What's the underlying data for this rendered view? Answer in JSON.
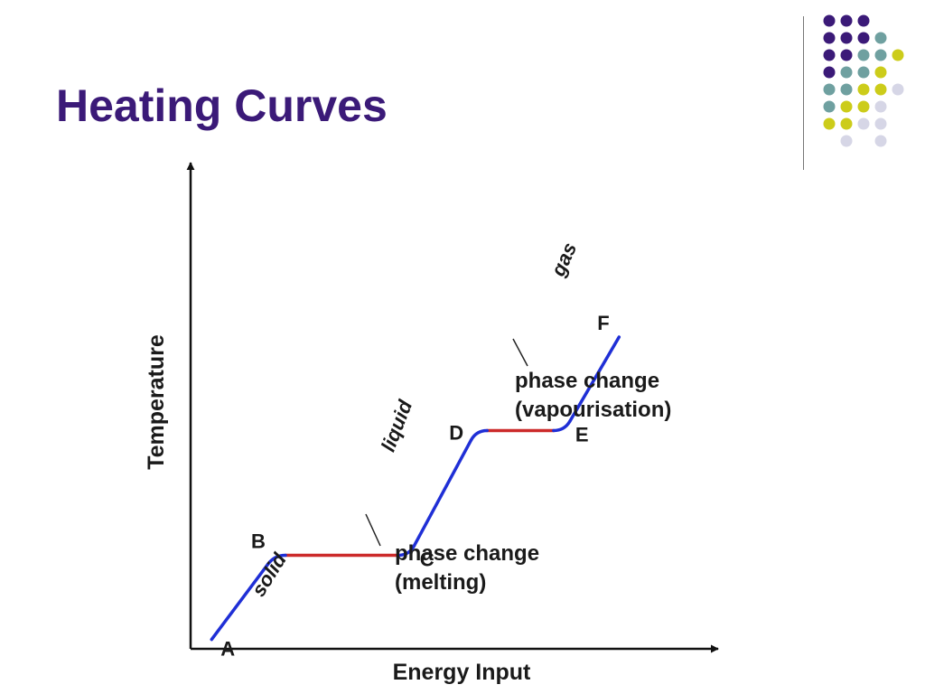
{
  "slide": {
    "title": "Heating Curves"
  },
  "decoration": {
    "dot_colors": {
      "purple": "#3b1a78",
      "teal": "#6fa0a0",
      "yellow": "#cccc1a",
      "lavender": "#d6d6e6"
    }
  },
  "chart_data": {
    "type": "line",
    "title": "",
    "xlabel": "Energy Input",
    "ylabel": "Temperature",
    "grid": false,
    "axis_ticks": false,
    "colors": {
      "heating": "#1f2fd6",
      "phase_change": "#cc2a2a",
      "axis": "#111111"
    },
    "points": [
      {
        "label": "A",
        "x": 0.5,
        "y": 0.3
      },
      {
        "label": "B",
        "x": 2.0,
        "y": 3.0
      },
      {
        "label": "C",
        "x": 5.2,
        "y": 3.0
      },
      {
        "label": "D",
        "x": 6.8,
        "y": 7.0
      },
      {
        "label": "E",
        "x": 8.9,
        "y": 7.0
      },
      {
        "label": "F",
        "x": 10.2,
        "y": 10.0
      }
    ],
    "segments": [
      {
        "from": "A",
        "to": "B",
        "state": "solid",
        "kind": "heating"
      },
      {
        "from": "B",
        "to": "C",
        "state": "",
        "kind": "phase_change"
      },
      {
        "from": "C",
        "to": "D",
        "state": "liquid",
        "kind": "heating"
      },
      {
        "from": "D",
        "to": "E",
        "state": "",
        "kind": "phase_change"
      },
      {
        "from": "E",
        "to": "F",
        "state": "gas",
        "kind": "heating"
      }
    ],
    "annotations": [
      {
        "line1": "phase change",
        "line2": "(melting)"
      },
      {
        "line1": "phase change",
        "line2": "(vapourisation)"
      }
    ]
  }
}
